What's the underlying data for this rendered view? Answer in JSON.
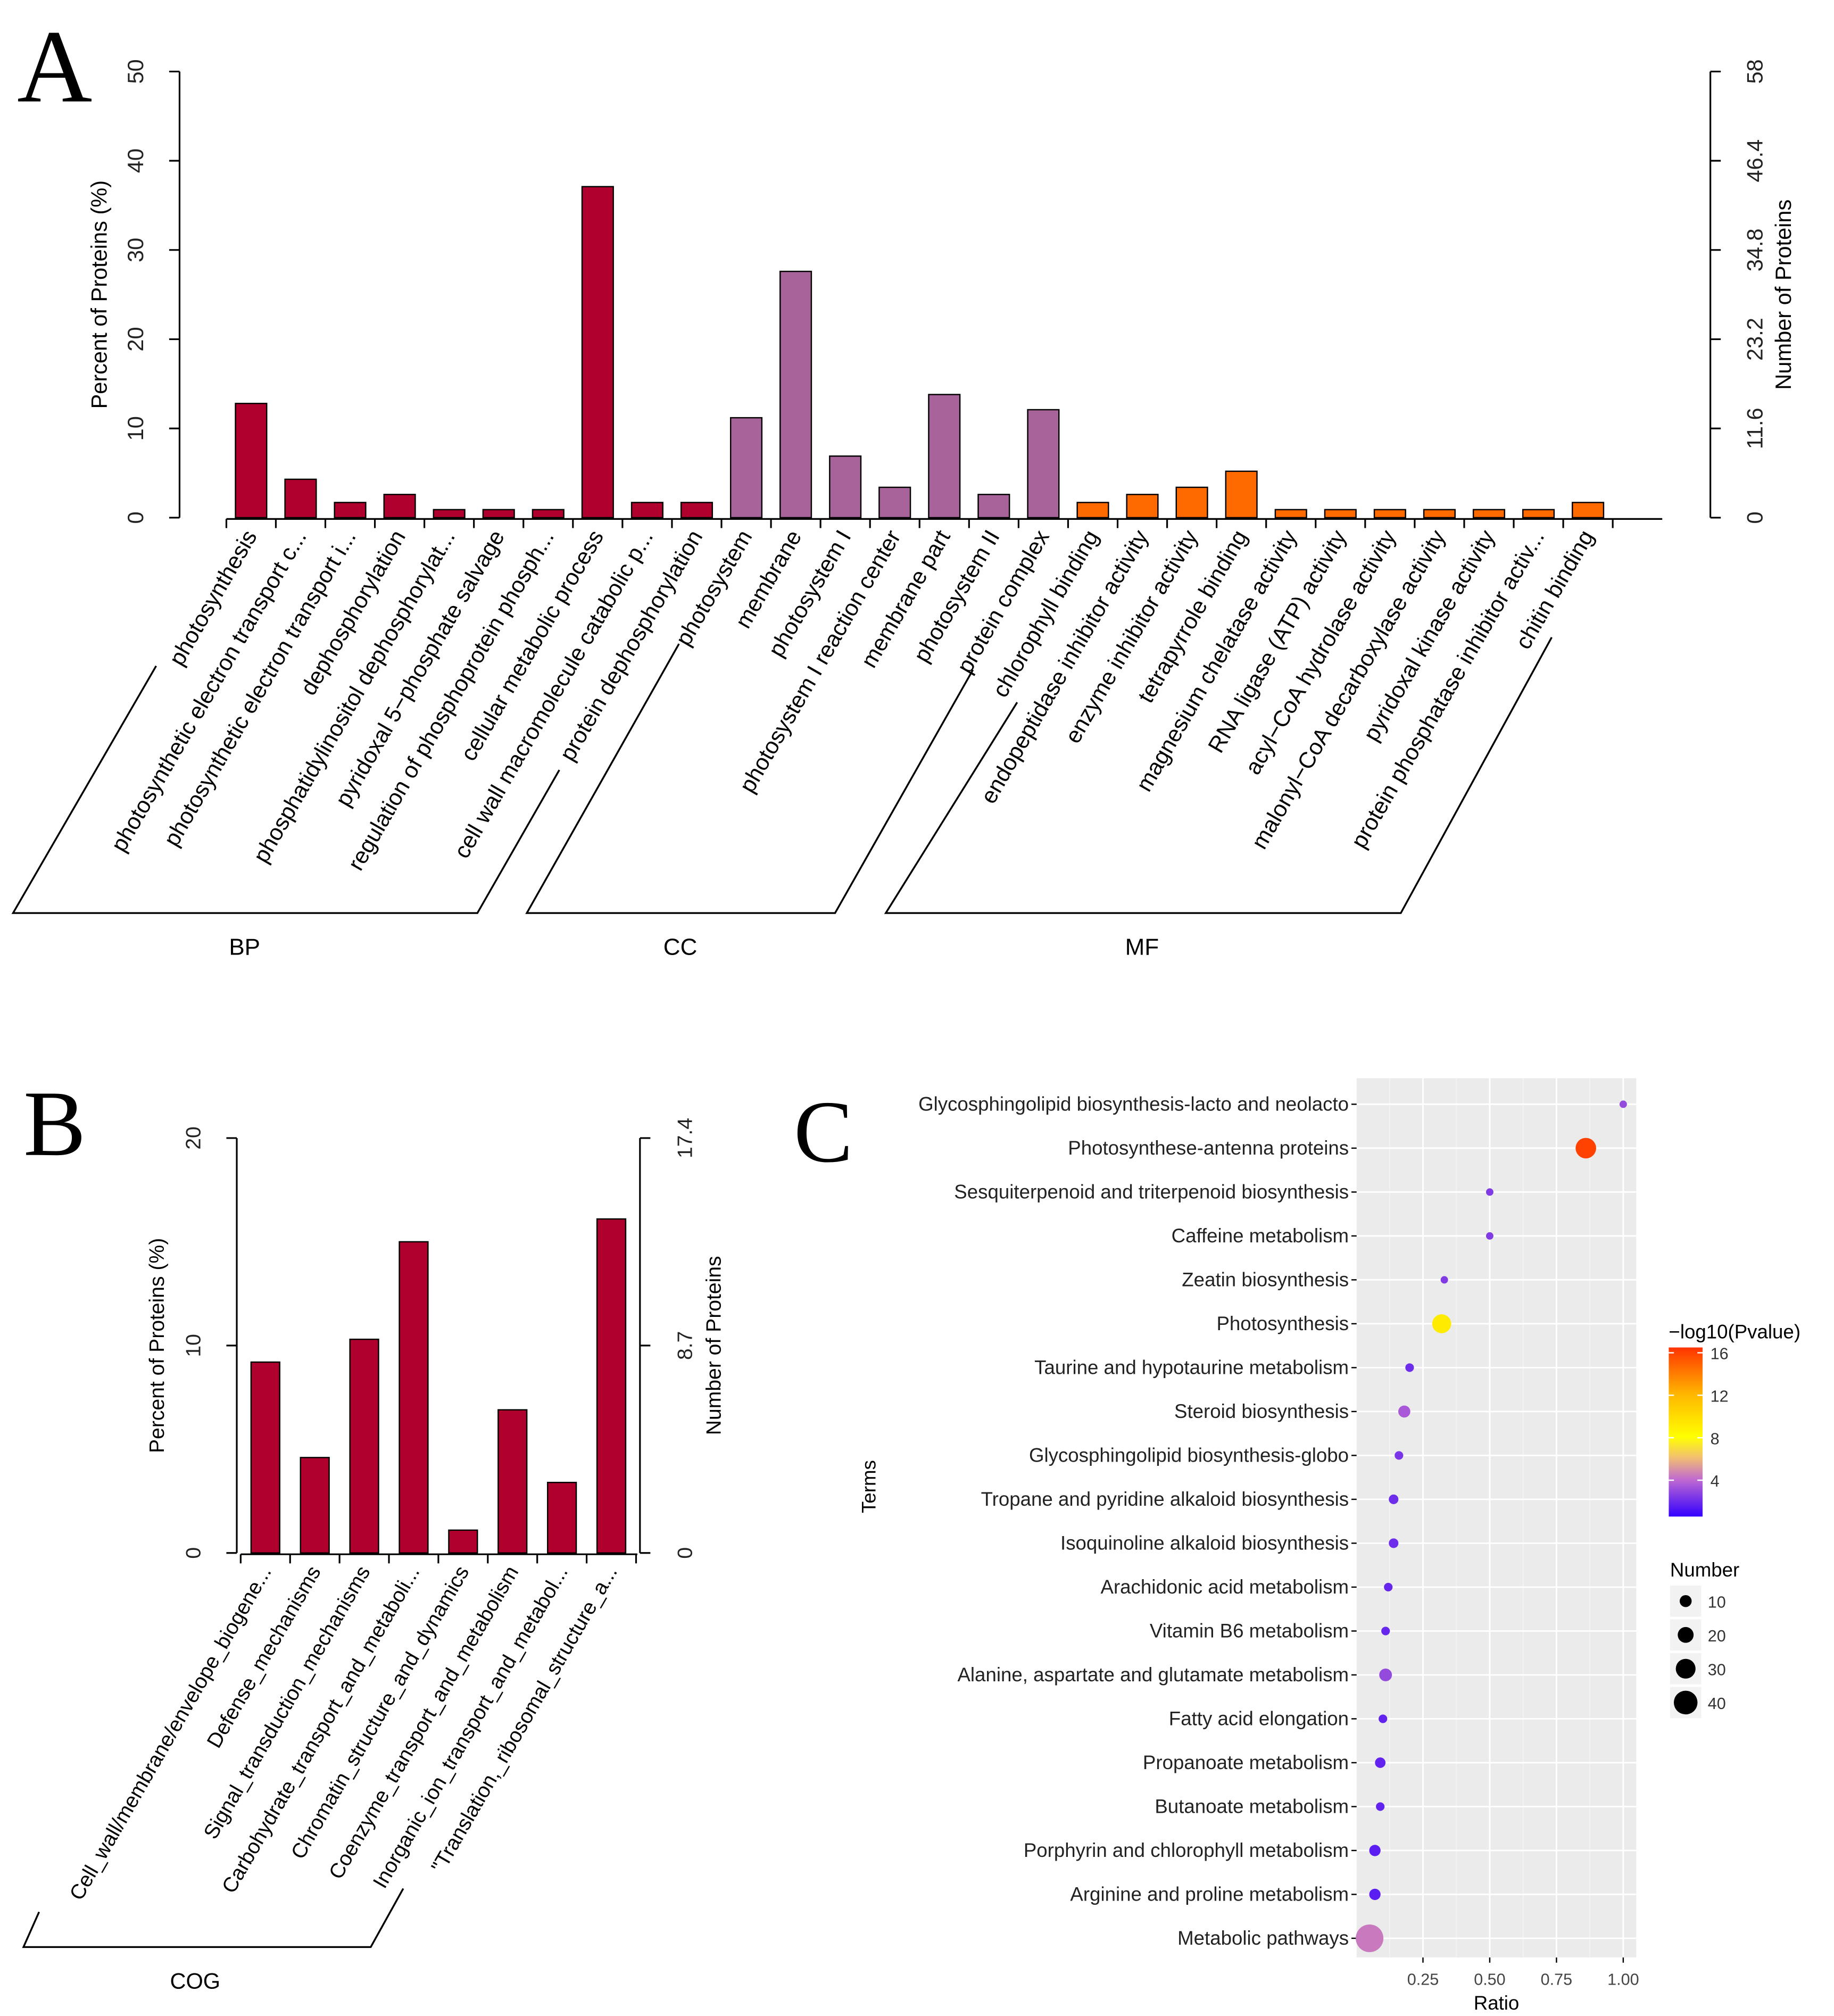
{
  "chart_data": [
    {
      "panel": "A",
      "type": "bar",
      "ylabel": "Percent of Proteins (%)",
      "y2label": "Number of Proteins",
      "ylim": [
        0,
        50
      ],
      "yticks": [
        "0",
        "10",
        "20",
        "30",
        "40",
        "50"
      ],
      "y2ticks": [
        "0",
        "11.6",
        "23.2",
        "34.8",
        "46.4",
        "58"
      ],
      "groups": [
        {
          "name": "BP",
          "color": "#b0002e",
          "categories": [
            "photosynthesis",
            "photosynthetic electron transport c...",
            "photosynthetic electron transport i...",
            "dephosphorylation",
            "phosphatidylinositol dephosphorylat...",
            "pyridoxal 5−phosphate salvage",
            "regulation of phosphoprotein phosph...",
            "cellular metabolic process",
            "cell wall macromolecule catabolic p...",
            "protein dephosphorylation"
          ],
          "values": [
            12.8,
            4.3,
            1.7,
            2.6,
            0.9,
            0.9,
            0.9,
            37.1,
            1.7,
            1.7
          ]
        },
        {
          "name": "CC",
          "color": "#a8649a",
          "categories": [
            "photosystem",
            "membrane",
            "photosystem I",
            "photosystem I reaction center",
            "membrane part",
            "photosystem II",
            "protein complex"
          ],
          "values": [
            11.2,
            27.6,
            6.9,
            3.4,
            13.8,
            2.6,
            12.1
          ]
        },
        {
          "name": "MF",
          "color": "#ff6a00",
          "categories": [
            "chlorophyll binding",
            "endopeptidase inhibitor activity",
            "enzyme inhibitor activity",
            "tetrapyrrole binding",
            "magnesium chelatase activity",
            "RNA ligase (ATP) activity",
            "acyl−CoA hydrolase activity",
            "malonyl−CoA decarboxylase activity",
            "pyridoxal kinase activity",
            "protein phosphatase inhibitor activ...",
            "chitin binding"
          ],
          "values": [
            1.7,
            2.6,
            3.4,
            5.2,
            0.9,
            0.9,
            0.9,
            0.9,
            0.9,
            0.9,
            1.7
          ]
        }
      ]
    },
    {
      "panel": "B",
      "type": "bar",
      "ylabel": "Percent of Proteins (%)",
      "y2label": "Number of Proteins",
      "ylim": [
        0,
        20
      ],
      "yticks": [
        "0",
        "10",
        "20"
      ],
      "y2ticks": [
        "0",
        "8.7",
        "17.4"
      ],
      "groups": [
        {
          "name": "COG",
          "color": "#b0002e",
          "categories": [
            "Cell_wall/membrane/envelope_biogene...",
            "Defense_mechanisms",
            "Signal_transduction_mechanisms",
            "Carbohydrate_transport_and_metaboli...",
            "Chromatin_structure_and_dynamics",
            "Coenzyme_transport_and_metabolism",
            "Inorganic_ion_transport_and_metabol...",
            "\"Translation,_ribosomal_structure_a..."
          ],
          "values": [
            9.2,
            4.6,
            10.3,
            15.0,
            1.1,
            6.9,
            3.4,
            16.1
          ]
        }
      ]
    },
    {
      "panel": "C",
      "type": "scatter",
      "xlabel": "Ratio",
      "ylabel": "Terms",
      "xlim": [
        0,
        1.03
      ],
      "xticks": [
        "0.25",
        "0.50",
        "0.75",
        "1.00"
      ],
      "color_legend": {
        "title": "−log10(Pvalue)",
        "ticks": [
          "4",
          "8",
          "12",
          "16"
        ],
        "range": [
          0.7,
          16.5
        ]
      },
      "size_legend": {
        "title": "Number",
        "ticks": [
          "10",
          "20",
          "30",
          "40"
        ]
      },
      "terms": [
        "Glycosphingolipid biosynthesis-lacto and neolacto",
        "Photosynthese-antenna proteins",
        "Sesquiterpenoid and triterpenoid biosynthesis",
        "Caffeine metabolism",
        "Zeatin biosynthesis",
        "Photosynthesis",
        "Taurine and hypotaurine metabolism",
        "Steroid biosynthesis",
        "Glycosphingolipid biosynthesis-globo",
        "Tropane and pyridine alkaloid biosynthesis",
        "Isoquinoline alkaloid biosynthesis",
        "Arachidonic acid metabolism",
        "Vitamin B6 metabolism",
        "Alanine, aspartate and glutamate metabolism",
        "Fatty acid elongation",
        "Propanoate metabolism",
        "Butanoate metabolism",
        "Porphyrin and chlorophyll metabolism",
        "Arginine and proline metabolism",
        "Metabolic pathways"
      ],
      "ratio": [
        1.0,
        0.86,
        0.5,
        0.5,
        0.33,
        0.32,
        0.2,
        0.18,
        0.16,
        0.14,
        0.14,
        0.12,
        0.11,
        0.11,
        0.1,
        0.09,
        0.09,
        0.07,
        0.07,
        0.05
      ],
      "neglog10p": [
        2.5,
        16,
        2,
        2,
        2,
        9,
        1.5,
        3,
        1.8,
        1.5,
        1.5,
        1.3,
        1.3,
        2.5,
        1.2,
        1.2,
        1.2,
        1,
        1,
        4
      ],
      "number": [
        2,
        24,
        2,
        2,
        2,
        20,
        3,
        7,
        3,
        4,
        4,
        3,
        3,
        8,
        3,
        5,
        3,
        6,
        6,
        46
      ]
    }
  ],
  "panel_letters": [
    "A",
    "B",
    "C"
  ]
}
